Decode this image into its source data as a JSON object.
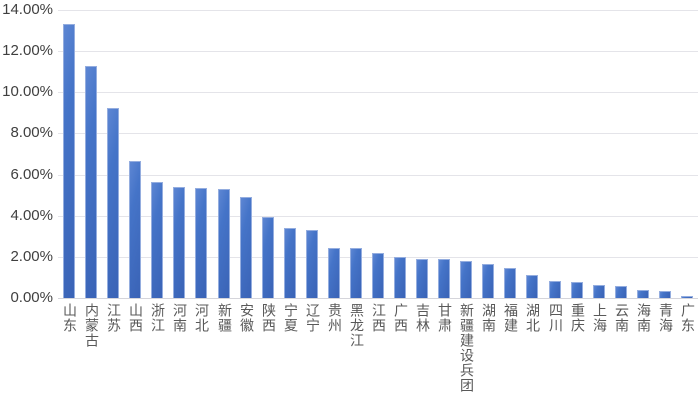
{
  "chart_data": {
    "type": "bar",
    "title": "",
    "xlabel": "",
    "ylabel": "",
    "categories": [
      "山东",
      "内蒙古",
      "江苏",
      "山西",
      "浙江",
      "河南",
      "河北",
      "新疆",
      "安徽",
      "陕西",
      "宁夏",
      "辽宁",
      "贵州",
      "黑龙江",
      "江西",
      "广西",
      "吉林",
      "甘肃",
      "新疆建设兵团",
      "湖南",
      "福建",
      "湖北",
      "四川",
      "重庆",
      "上海",
      "云南",
      "海南",
      "青海",
      "广东"
    ],
    "values": [
      13.3,
      11.3,
      9.25,
      6.65,
      5.65,
      5.4,
      5.35,
      5.3,
      4.9,
      3.95,
      3.4,
      3.3,
      2.45,
      2.45,
      2.2,
      2.0,
      1.9,
      1.9,
      1.8,
      1.65,
      1.45,
      1.1,
      0.85,
      0.8,
      0.65,
      0.6,
      0.37,
      0.35,
      0.1
    ],
    "value_unit": "%",
    "ylim": [
      0,
      14
    ],
    "y_tick_step": 2,
    "y_tick_labels": [
      "0.00%",
      "2.00%",
      "4.00%",
      "6.00%",
      "8.00%",
      "10.00%",
      "12.00%",
      "14.00%"
    ],
    "grid": true,
    "legend": false,
    "colors": {
      "bar_gradient_light": "#5d86d3",
      "bar_gradient_mid": "#4574c8",
      "bar_gradient_dark": "#3a63b6",
      "bar_border": "#94addf",
      "gridline": "#e4e4e9",
      "axis_line": "#d5d5db",
      "tick_text": "#3f3f3f",
      "category_text": "#595959",
      "background": "#ffffff"
    }
  }
}
